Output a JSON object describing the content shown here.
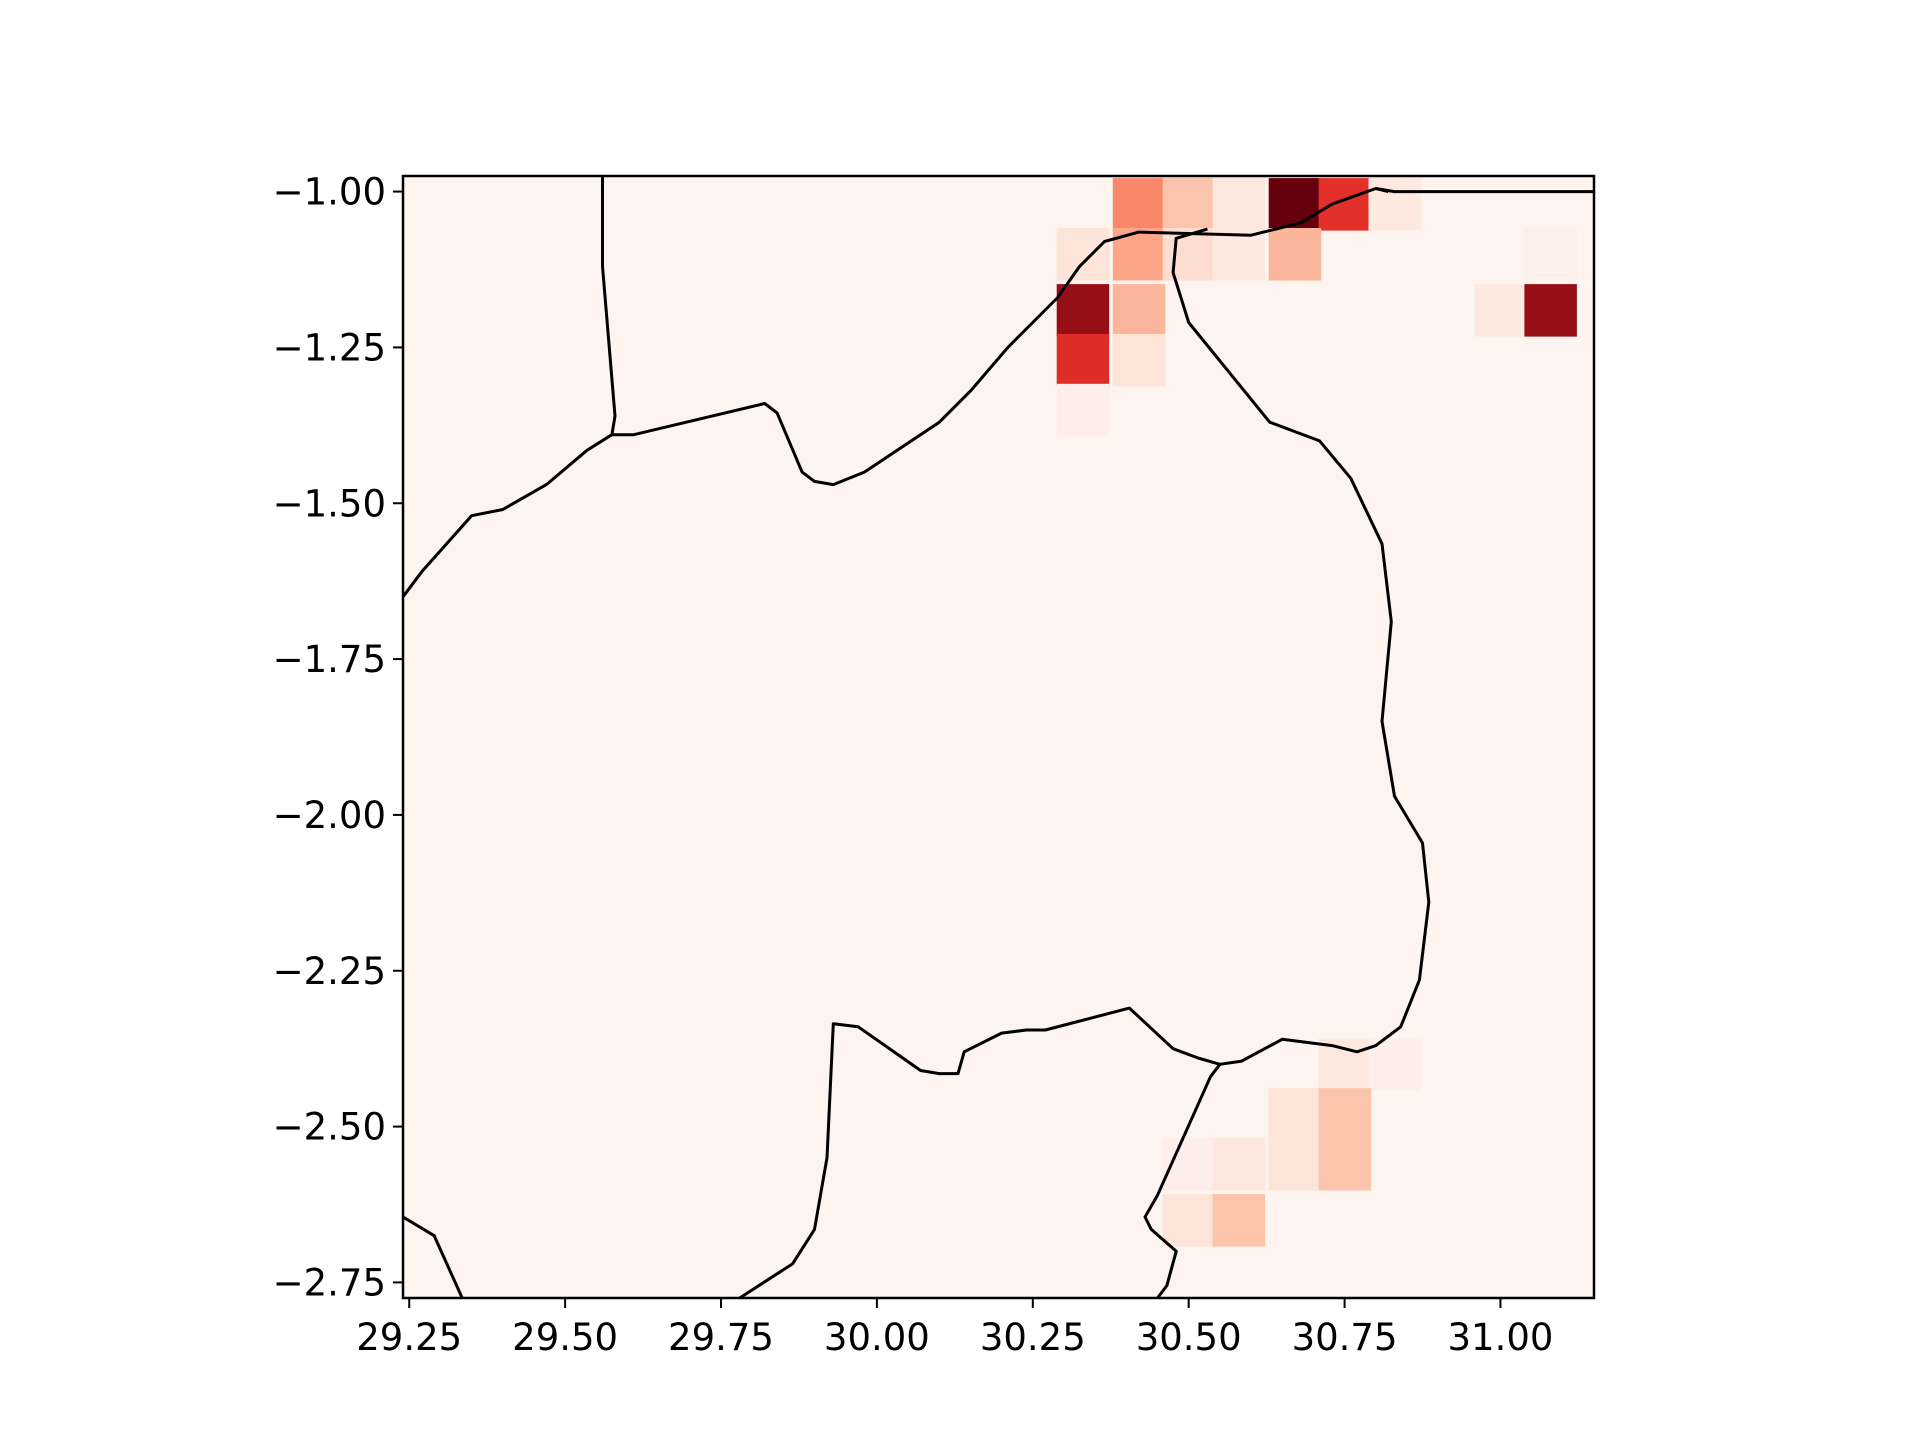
{
  "chart_data": {
    "type": "heatmap",
    "title": "",
    "xlabel": "",
    "ylabel": "",
    "xlim": [
      29.24,
      31.15
    ],
    "ylim": [
      -2.775,
      -0.975
    ],
    "grid": false,
    "legend": "none",
    "colormap": "Reds",
    "cell_size_deg": 0.0833,
    "background_color": "#fdf3ef",
    "x_ticks": [
      {
        "value": 29.25,
        "label": "29.25"
      },
      {
        "value": 29.5,
        "label": "29.50"
      },
      {
        "value": 29.75,
        "label": "29.75"
      },
      {
        "value": 30.0,
        "label": "30.00"
      },
      {
        "value": 30.25,
        "label": "30.25"
      },
      {
        "value": 30.5,
        "label": "30.50"
      },
      {
        "value": 30.75,
        "label": "30.75"
      },
      {
        "value": 31.0,
        "label": "31.00"
      }
    ],
    "y_ticks": [
      {
        "value": -1.0,
        "label": "−1.00"
      },
      {
        "value": -1.25,
        "label": "−1.25"
      },
      {
        "value": -1.5,
        "label": "−1.50"
      },
      {
        "value": -1.75,
        "label": "−1.75"
      },
      {
        "value": -2.0,
        "label": "−2.00"
      },
      {
        "value": -2.25,
        "label": "−2.25"
      },
      {
        "value": -2.5,
        "label": "−2.50"
      },
      {
        "value": -2.75,
        "label": "−2.75"
      }
    ],
    "cells": [
      {
        "lon": 30.42,
        "lat": -1.02,
        "color": "#f9876a"
      },
      {
        "lon": 30.5,
        "lat": -1.02,
        "color": "#fcc4ac"
      },
      {
        "lon": 30.58,
        "lat": -1.02,
        "color": "#fde7de"
      },
      {
        "lon": 30.67,
        "lat": -1.02,
        "color": "#67000d"
      },
      {
        "lon": 30.75,
        "lat": -1.02,
        "color": "#e3302a"
      },
      {
        "lon": 30.83,
        "lat": -1.02,
        "color": "#fde9e0"
      },
      {
        "lon": 30.33,
        "lat": -1.1,
        "color": "#fde4d8"
      },
      {
        "lon": 30.42,
        "lat": -1.1,
        "color": "#fba689"
      },
      {
        "lon": 30.5,
        "lat": -1.1,
        "color": "#fdddd0"
      },
      {
        "lon": 30.58,
        "lat": -1.1,
        "color": "#fde9e0"
      },
      {
        "lon": 30.67,
        "lat": -1.1,
        "color": "#fbb59a"
      },
      {
        "lon": 31.08,
        "lat": -1.1,
        "color": "#fdf0ea"
      },
      {
        "lon": 30.33,
        "lat": -1.19,
        "color": "#960f16"
      },
      {
        "lon": 30.42,
        "lat": -1.19,
        "color": "#fbb59a"
      },
      {
        "lon": 31.0,
        "lat": -1.19,
        "color": "#fde9e0"
      },
      {
        "lon": 31.08,
        "lat": -1.19,
        "color": "#960f16"
      },
      {
        "lon": 30.33,
        "lat": -1.27,
        "color": "#de2c26"
      },
      {
        "lon": 30.42,
        "lat": -1.27,
        "color": "#fde4d8"
      },
      {
        "lon": 30.33,
        "lat": -1.35,
        "color": "#fdeee9"
      },
      {
        "lon": 30.75,
        "lat": -2.4,
        "color": "#fde7de"
      },
      {
        "lon": 30.83,
        "lat": -2.4,
        "color": "#fdeee9"
      },
      {
        "lon": 30.67,
        "lat": -2.48,
        "color": "#fde4d8"
      },
      {
        "lon": 30.75,
        "lat": -2.48,
        "color": "#fbc4ab"
      },
      {
        "lon": 30.5,
        "lat": -2.56,
        "color": "#fdeee9"
      },
      {
        "lon": 30.58,
        "lat": -2.56,
        "color": "#fde7de"
      },
      {
        "lon": 30.67,
        "lat": -2.56,
        "color": "#fde4d8"
      },
      {
        "lon": 30.75,
        "lat": -2.56,
        "color": "#fbc4ab"
      },
      {
        "lon": 30.5,
        "lat": -2.65,
        "color": "#fde4d8"
      },
      {
        "lon": 30.58,
        "lat": -2.65,
        "color": "#fbc4ab"
      }
    ],
    "boundaries": [
      {
        "name": "uganda-border",
        "points": [
          [
            29.56,
            -0.975
          ],
          [
            29.56,
            -1.12
          ],
          [
            29.58,
            -1.36
          ],
          [
            29.575,
            -1.39
          ]
        ]
      },
      {
        "name": "rwanda-border",
        "points": [
          [
            29.24,
            -1.65
          ],
          [
            29.27,
            -1.61
          ],
          [
            29.35,
            -1.52
          ],
          [
            29.4,
            -1.51
          ],
          [
            29.47,
            -1.47
          ],
          [
            29.535,
            -1.415
          ],
          [
            29.575,
            -1.39
          ],
          [
            29.61,
            -1.39
          ],
          [
            29.82,
            -1.34
          ],
          [
            29.84,
            -1.355
          ],
          [
            29.88,
            -1.45
          ],
          [
            29.9,
            -1.465
          ],
          [
            29.93,
            -1.47
          ],
          [
            29.98,
            -1.45
          ],
          [
            30.1,
            -1.37
          ],
          [
            30.15,
            -1.32
          ],
          [
            30.21,
            -1.25
          ],
          [
            30.29,
            -1.17
          ],
          [
            30.325,
            -1.12
          ],
          [
            30.365,
            -1.08
          ],
          [
            30.42,
            -1.065
          ],
          [
            30.6,
            -1.07
          ],
          [
            30.64,
            -1.06
          ],
          [
            30.68,
            -1.05
          ],
          [
            30.73,
            -1.02
          ],
          [
            30.8,
            -0.995
          ],
          [
            30.82,
            -1.0
          ]
        ]
      },
      {
        "name": "rwanda-border-east-south",
        "points": [
          [
            30.53,
            -1.06
          ],
          [
            30.48,
            -1.075
          ],
          [
            30.475,
            -1.13
          ],
          [
            30.5,
            -1.21
          ],
          [
            30.63,
            -1.37
          ],
          [
            30.71,
            -1.4
          ],
          [
            30.76,
            -1.46
          ],
          [
            30.81,
            -1.565
          ],
          [
            30.825,
            -1.69
          ],
          [
            30.81,
            -1.85
          ],
          [
            30.83,
            -1.97
          ],
          [
            30.875,
            -2.045
          ],
          [
            30.885,
            -2.14
          ],
          [
            30.87,
            -2.265
          ],
          [
            30.84,
            -2.34
          ],
          [
            30.8,
            -2.37
          ],
          [
            30.77,
            -2.38
          ],
          [
            30.73,
            -2.37
          ],
          [
            30.65,
            -2.36
          ],
          [
            30.585,
            -2.395
          ],
          [
            30.55,
            -2.4
          ],
          [
            30.515,
            -2.39
          ],
          [
            30.475,
            -2.375
          ],
          [
            30.405,
            -2.31
          ],
          [
            30.27,
            -2.345
          ],
          [
            30.24,
            -2.345
          ],
          [
            30.2,
            -2.35
          ],
          [
            30.14,
            -2.38
          ],
          [
            30.13,
            -2.415
          ],
          [
            30.1,
            -2.415
          ],
          [
            30.07,
            -2.41
          ],
          [
            29.97,
            -2.34
          ],
          [
            29.93,
            -2.335
          ],
          [
            29.92,
            -2.55
          ],
          [
            29.9,
            -2.665
          ],
          [
            29.865,
            -2.72
          ],
          [
            29.78,
            -2.775
          ]
        ]
      },
      {
        "name": "tanzania-border",
        "points": [
          [
            30.55,
            -2.4
          ],
          [
            30.535,
            -2.42
          ],
          [
            30.45,
            -2.61
          ],
          [
            30.43,
            -2.645
          ],
          [
            30.44,
            -2.665
          ],
          [
            30.48,
            -2.7
          ],
          [
            30.465,
            -2.755
          ],
          [
            30.45,
            -2.775
          ]
        ]
      },
      {
        "name": "burundi-border",
        "points": [
          [
            29.24,
            -2.645
          ],
          [
            29.29,
            -2.675
          ],
          [
            29.335,
            -2.775
          ]
        ]
      },
      {
        "name": "lake-victoria-border",
        "points": [
          [
            30.8,
            -0.995
          ],
          [
            30.83,
            -1.0
          ],
          [
            31.15,
            -1.0
          ]
        ]
      }
    ]
  }
}
